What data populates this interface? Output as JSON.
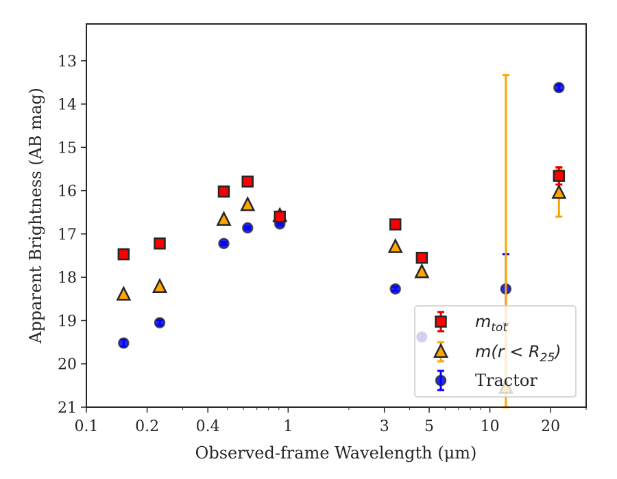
{
  "chart_data": {
    "type": "scatter",
    "xlabel": "Observed-frame Wavelength (μm)",
    "ylabel": "Apparent Brightness (AB mag)",
    "xscale": "log",
    "xlim": [
      0.1,
      30
    ],
    "ylim": [
      21,
      12.15
    ],
    "y_inverted": true,
    "x_ticks": [
      0.1,
      0.2,
      0.4,
      1,
      3,
      5,
      10,
      20
    ],
    "x_tick_labels": [
      "0.1",
      "0.2",
      "0.4",
      "1",
      "3",
      "5",
      "10",
      "20"
    ],
    "y_ticks": [
      13,
      14,
      15,
      16,
      17,
      18,
      19,
      20,
      21
    ],
    "y_tick_labels": [
      "13",
      "14",
      "15",
      "16",
      "17",
      "18",
      "19",
      "20",
      "21"
    ],
    "legend_position": "lower right",
    "legend": [
      {
        "label_main": "m",
        "label_sub": "tot",
        "marker": "square",
        "color": "#ff0000",
        "errcolor": "#dd0000"
      },
      {
        "label_main": "m(r < R",
        "label_sub": "25",
        "label_end": ")",
        "marker": "triangle",
        "color": "#ffa500",
        "errcolor": "#ffa500"
      },
      {
        "label_main": "Tractor",
        "marker": "circle",
        "color": "#0000ff",
        "errcolor": "#0000ff"
      }
    ],
    "series": [
      {
        "name": "m_tot",
        "marker": "square",
        "color": "#ff0000",
        "x": [
          0.153,
          0.231,
          0.48,
          0.63,
          0.91,
          3.4,
          4.6,
          22.0
        ],
        "y": [
          17.47,
          17.22,
          16.02,
          15.79,
          16.6,
          16.78,
          17.55,
          15.66
        ],
        "err": [
          0.02,
          0.02,
          0.01,
          0.01,
          0.02,
          0.03,
          0.05,
          0.2
        ]
      },
      {
        "name": "m(r<R25)",
        "marker": "triangle",
        "color": "#ffa500",
        "x": [
          0.153,
          0.231,
          0.48,
          0.63,
          0.91,
          3.4,
          4.6,
          12.0,
          22.0
        ],
        "y": [
          18.4,
          18.22,
          16.67,
          16.33,
          16.58,
          17.3,
          17.88,
          20.55,
          16.05
        ],
        "err": [
          0.02,
          0.02,
          0.01,
          0.01,
          0.02,
          0.03,
          0.05,
          7.22,
          0.55
        ]
      },
      {
        "name": "Tractor",
        "marker": "circle",
        "color": "#0000ff",
        "x": [
          0.153,
          0.231,
          0.48,
          0.63,
          0.91,
          3.4,
          4.6,
          12.0,
          22.0
        ],
        "y": [
          19.52,
          19.05,
          17.22,
          16.86,
          16.77,
          18.27,
          19.38,
          18.27,
          13.62
        ],
        "err": [
          0.08,
          0.06,
          0.03,
          0.03,
          0.03,
          0.05,
          0.06,
          0.8,
          0.06
        ]
      }
    ]
  }
}
